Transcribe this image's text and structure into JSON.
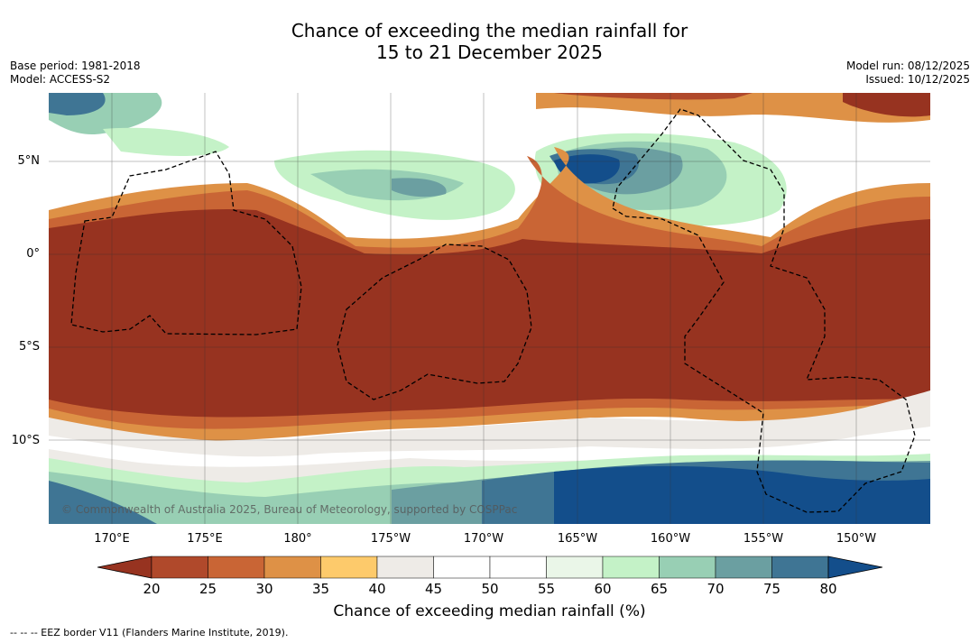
{
  "title": {
    "line1": "Chance of exceeding the median rainfall for",
    "line2": "15 to 21 December 2025"
  },
  "meta_left": {
    "base_period": "Base period: 1981-2018",
    "model": "Model: ACCESS-S2"
  },
  "meta_right": {
    "model_run": "Model run: 08/12/2025",
    "issued": "Issued: 10/12/2025"
  },
  "map": {
    "lat_labels": [
      "5°N",
      "0°",
      "5°S",
      "10°S"
    ],
    "lon_labels": [
      "170°E",
      "175°E",
      "180°",
      "175°W",
      "170°W",
      "165°W",
      "160°W",
      "155°W",
      "150°W"
    ],
    "copyright": "© Commonwealth of Australia 2025, Bureau of Meteorology, supported by COSPPac",
    "bands": [
      {
        "name": "north-edge",
        "value": 45
      },
      {
        "name": "northern-wet-zone",
        "value": 65
      },
      {
        "name": "central-warm-pool",
        "value": 52
      },
      {
        "name": "dry-equatorial-belt",
        "value": 20
      },
      {
        "name": "southern-transition",
        "value": 45
      },
      {
        "name": "southern-wet-zone",
        "value": 75
      }
    ],
    "features": [
      {
        "name": "wet-core-near-163W-4N",
        "value": 80
      },
      {
        "name": "dry-core-near-160W-7N",
        "value": 20
      }
    ]
  },
  "colorbar": {
    "ticks": [
      "20",
      "25",
      "30",
      "35",
      "40",
      "45",
      "50",
      "55",
      "60",
      "65",
      "70",
      "75",
      "80"
    ],
    "colors": [
      "#973320",
      "#b0492b",
      "#c96535",
      "#de9146",
      "#fdca6b",
      "#eeebe7",
      "#ffffff",
      "#ffffff",
      "#eaf6e8",
      "#c4f2c7",
      "#98cfb4",
      "#6b9fa1",
      "#3f7594",
      "#134e8b"
    ],
    "label": "Chance of exceeding median rainfall (%)"
  },
  "footer": "--  --  -- EEZ border V11 (Flanders Marine Institute, 2019)."
}
